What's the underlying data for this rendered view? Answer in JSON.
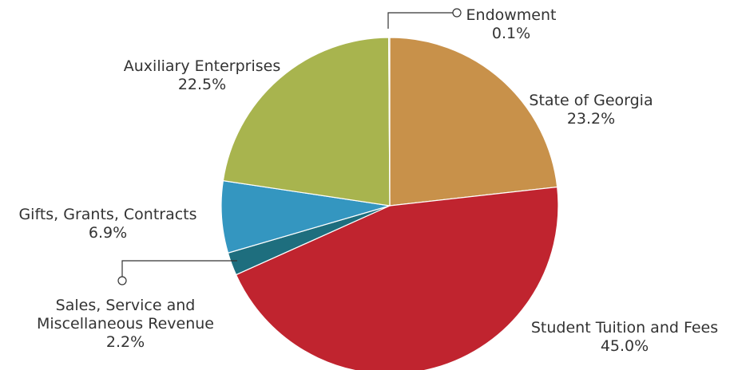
{
  "chart_data": {
    "type": "pie",
    "categories": [
      "State of Georgia",
      "Student Tuition and Fees",
      "Sales, Service and Miscellaneous Revenue",
      "Gifts, Grants, Contracts",
      "Auxiliary Enterprises",
      "Endowment"
    ],
    "values": [
      23.2,
      45.0,
      2.2,
      6.9,
      22.5,
      0.1
    ],
    "value_labels": [
      "23.2%",
      "45.0%",
      "2.2%",
      "6.9%",
      "22.5%",
      "0.1%"
    ],
    "colors": [
      "#c8914a",
      "#c0242f",
      "#1e6e7e",
      "#3496c0",
      "#a8b44e",
      "#8a8f7a"
    ]
  }
}
